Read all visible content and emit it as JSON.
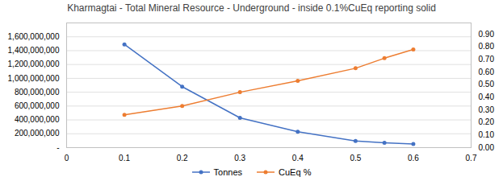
{
  "chart_data": {
    "type": "line",
    "title": "Kharmagtai - Total Mineral Resource - Underground - inside 0.1%CuEq reporting solid",
    "x": [
      0.1,
      0.2,
      0.3,
      0.4,
      0.5,
      0.55,
      0.6
    ],
    "xlim": [
      0,
      0.7
    ],
    "xticks": [
      0,
      0.1,
      0.2,
      0.3,
      0.4,
      0.5,
      0.6,
      0.7
    ],
    "ylim": [
      0,
      1800000000
    ],
    "yticks": [
      {
        "value": 0,
        "label": "-"
      },
      {
        "value": 200000000,
        "label": "200,000,000"
      },
      {
        "value": 400000000,
        "label": "400,000,000"
      },
      {
        "value": 600000000,
        "label": "600,000,000"
      },
      {
        "value": 800000000,
        "label": "800,000,000"
      },
      {
        "value": 1000000000,
        "label": "1,000,000,000"
      },
      {
        "value": 1200000000,
        "label": "1,200,000,000"
      },
      {
        "value": 1400000000,
        "label": "1,400,000,000"
      },
      {
        "value": 1600000000,
        "label": "1,600,000,000"
      }
    ],
    "y2lim": [
      0,
      0.99
    ],
    "y2ticks": [
      {
        "value": 0,
        "label": "0.00"
      },
      {
        "value": 0.1,
        "label": "0.10"
      },
      {
        "value": 0.2,
        "label": "0.20"
      },
      {
        "value": 0.3,
        "label": "0.30"
      },
      {
        "value": 0.4,
        "label": "0.40"
      },
      {
        "value": 0.5,
        "label": "0.50"
      },
      {
        "value": 0.6,
        "label": "0.60"
      },
      {
        "value": 0.7,
        "label": "0.70"
      },
      {
        "value": 0.8,
        "label": "0.80"
      },
      {
        "value": 0.9,
        "label": "0.90"
      }
    ],
    "grid": true,
    "legend": "bottom",
    "series": [
      {
        "name": "Tonnes",
        "color": "#4472C4",
        "marker": "circle",
        "values": [
          1490000000,
          880000000,
          430000000,
          230000000,
          95000000,
          70000000,
          52000000
        ]
      },
      {
        "name": "CuEq %",
        "color": "#ED7D31",
        "marker": "circle",
        "axis": "y2",
        "values": [
          0.26,
          0.33,
          0.44,
          0.53,
          0.63,
          0.71,
          0.78
        ]
      }
    ]
  }
}
